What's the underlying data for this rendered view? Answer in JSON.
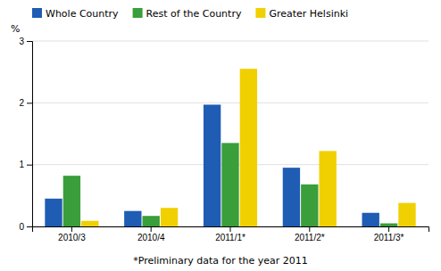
{
  "chart_data": {
    "type": "bar",
    "ylabel": "%",
    "annotations": [
      "*Preliminary data for the year 2011"
    ],
    "categories": [
      "2010/3",
      "2010/4",
      "2011/1*",
      "2011/2*",
      "2011/3*"
    ],
    "series": [
      {
        "name": "Whole Country",
        "color": "#1f5cb4",
        "values": [
          0.45,
          0.25,
          1.97,
          0.95,
          0.22
        ]
      },
      {
        "name": "Rest of the Country",
        "color": "#3a9e3a",
        "values": [
          0.82,
          0.17,
          1.35,
          0.68,
          0.05
        ]
      },
      {
        "name": "Greater Helsinki",
        "color": "#f0d000",
        "values": [
          0.09,
          0.3,
          2.55,
          1.22,
          0.38
        ]
      }
    ],
    "ylim": [
      0,
      3.0
    ],
    "yticks": [
      0,
      1,
      2,
      3
    ],
    "grid": true,
    "legend": "upper left"
  }
}
